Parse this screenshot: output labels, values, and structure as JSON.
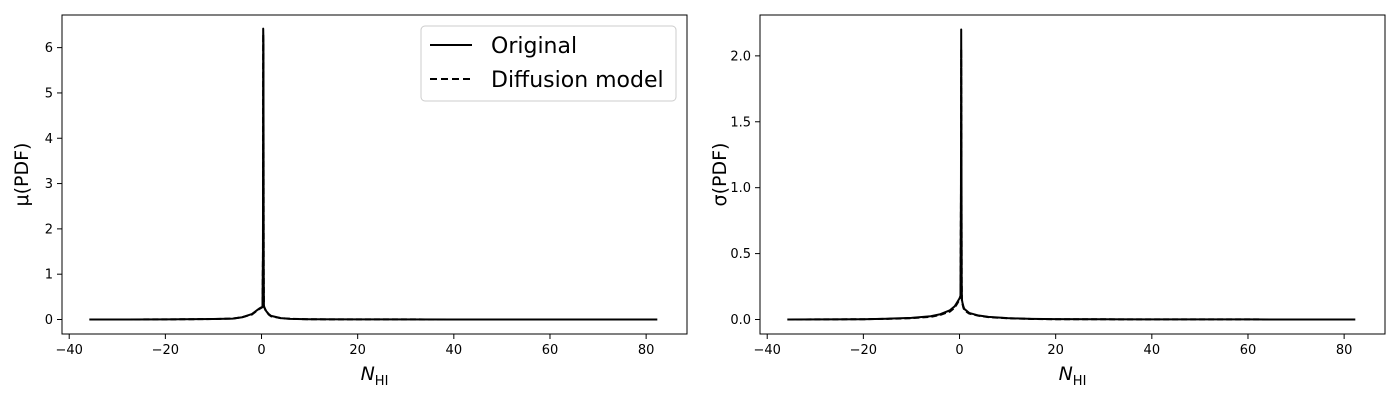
{
  "chart_data": [
    {
      "type": "line",
      "title": "",
      "xlabel": "N",
      "xlabel_sub": "HI",
      "ylabel": "μ(PDF)",
      "xlim": [
        -41.5,
        88.5
      ],
      "ylim": [
        -0.32,
        6.72
      ],
      "xticks": [
        -40,
        -20,
        0,
        20,
        40,
        60,
        80
      ],
      "yticks": [
        0,
        1,
        2,
        3,
        4,
        5,
        6
      ],
      "tick_labels_x": [
        "−40",
        "−20",
        "0",
        "20",
        "40",
        "60",
        "80"
      ],
      "tick_labels_y": [
        "0",
        "1",
        "2",
        "3",
        "4",
        "5",
        "6"
      ],
      "grid": false,
      "legend_position": "top-right",
      "series": [
        {
          "name": "Original",
          "style": "solid",
          "color": "#000000",
          "x": [
            -35.8,
            -20,
            -10,
            -6,
            -4,
            -2,
            -1,
            -0.5,
            0,
            0.2,
            0.3,
            0.35,
            0.4,
            0.45,
            0.5,
            0.6,
            0.8,
            1,
            1.5,
            2,
            4,
            6,
            10,
            20,
            40,
            60,
            82.3
          ],
          "y": [
            0,
            0.002,
            0.01,
            0.02,
            0.05,
            0.12,
            0.2,
            0.24,
            0.27,
            0.28,
            1.5,
            6.42,
            6.1,
            1.2,
            0.3,
            0.27,
            0.22,
            0.18,
            0.12,
            0.08,
            0.03,
            0.015,
            0.005,
            0.002,
            0.001,
            0.0005,
            0
          ]
        },
        {
          "name": "Diffusion model",
          "style": "dashed",
          "color": "#000000",
          "x": [
            -35.8,
            -20,
            -10,
            -6,
            -4,
            -2,
            -1,
            -0.5,
            0,
            0.2,
            0.3,
            0.35,
            0.4,
            0.45,
            0.5,
            0.6,
            0.8,
            1,
            1.5,
            2,
            4,
            6,
            10,
            20,
            40,
            60,
            82.3
          ],
          "y": [
            0,
            0.002,
            0.01,
            0.02,
            0.05,
            0.11,
            0.19,
            0.23,
            0.26,
            0.27,
            1.4,
            6.3,
            6.0,
            1.1,
            0.29,
            0.26,
            0.21,
            0.17,
            0.11,
            0.07,
            0.03,
            0.015,
            0.005,
            0.002,
            0.001,
            0.0005,
            0
          ]
        }
      ]
    },
    {
      "type": "line",
      "title": "",
      "xlabel": "N",
      "xlabel_sub": "HI",
      "ylabel": "σ(PDF)",
      "xlim": [
        -41.5,
        88.5
      ],
      "ylim": [
        -0.11,
        2.31
      ],
      "xticks": [
        -40,
        -20,
        0,
        20,
        40,
        60,
        80
      ],
      "yticks": [
        0,
        0.5,
        1,
        1.5,
        2
      ],
      "tick_labels_x": [
        "−40",
        "−20",
        "0",
        "20",
        "40",
        "60",
        "80"
      ],
      "tick_labels_y": [
        "0.0",
        "0.5",
        "1.0",
        "1.5",
        "2.0"
      ],
      "grid": false,
      "legend_position": "none",
      "series": [
        {
          "name": "Original",
          "style": "solid",
          "color": "#000000",
          "x": [
            -35.8,
            -20,
            -15,
            -10,
            -6,
            -4,
            -2,
            -1,
            -0.5,
            0,
            0.2,
            0.3,
            0.35,
            0.4,
            0.45,
            0.5,
            0.6,
            0.8,
            1,
            2,
            4,
            6,
            10,
            15,
            20,
            40,
            60,
            82.3
          ],
          "y": [
            0,
            0.002,
            0.006,
            0.012,
            0.025,
            0.04,
            0.07,
            0.1,
            0.13,
            0.16,
            0.18,
            1.0,
            2.2,
            1.35,
            0.3,
            0.15,
            0.13,
            0.1,
            0.08,
            0.05,
            0.03,
            0.02,
            0.01,
            0.005,
            0.003,
            0.001,
            0.0005,
            0
          ]
        },
        {
          "name": "Diffusion model",
          "style": "dashed",
          "color": "#000000",
          "x": [
            -35.8,
            -20,
            -15,
            -10,
            -6,
            -4,
            -2,
            -1,
            -0.5,
            0,
            0.2,
            0.3,
            0.35,
            0.4,
            0.45,
            0.5,
            0.6,
            0.8,
            1,
            2,
            4,
            6,
            10,
            15,
            20,
            40,
            60,
            82.3
          ],
          "y": [
            0,
            0.002,
            0.005,
            0.01,
            0.02,
            0.035,
            0.06,
            0.09,
            0.12,
            0.15,
            0.17,
            0.9,
            2.05,
            1.3,
            0.28,
            0.14,
            0.12,
            0.09,
            0.07,
            0.045,
            0.028,
            0.018,
            0.009,
            0.004,
            0.002,
            0.001,
            0.0005,
            0
          ]
        }
      ]
    }
  ]
}
